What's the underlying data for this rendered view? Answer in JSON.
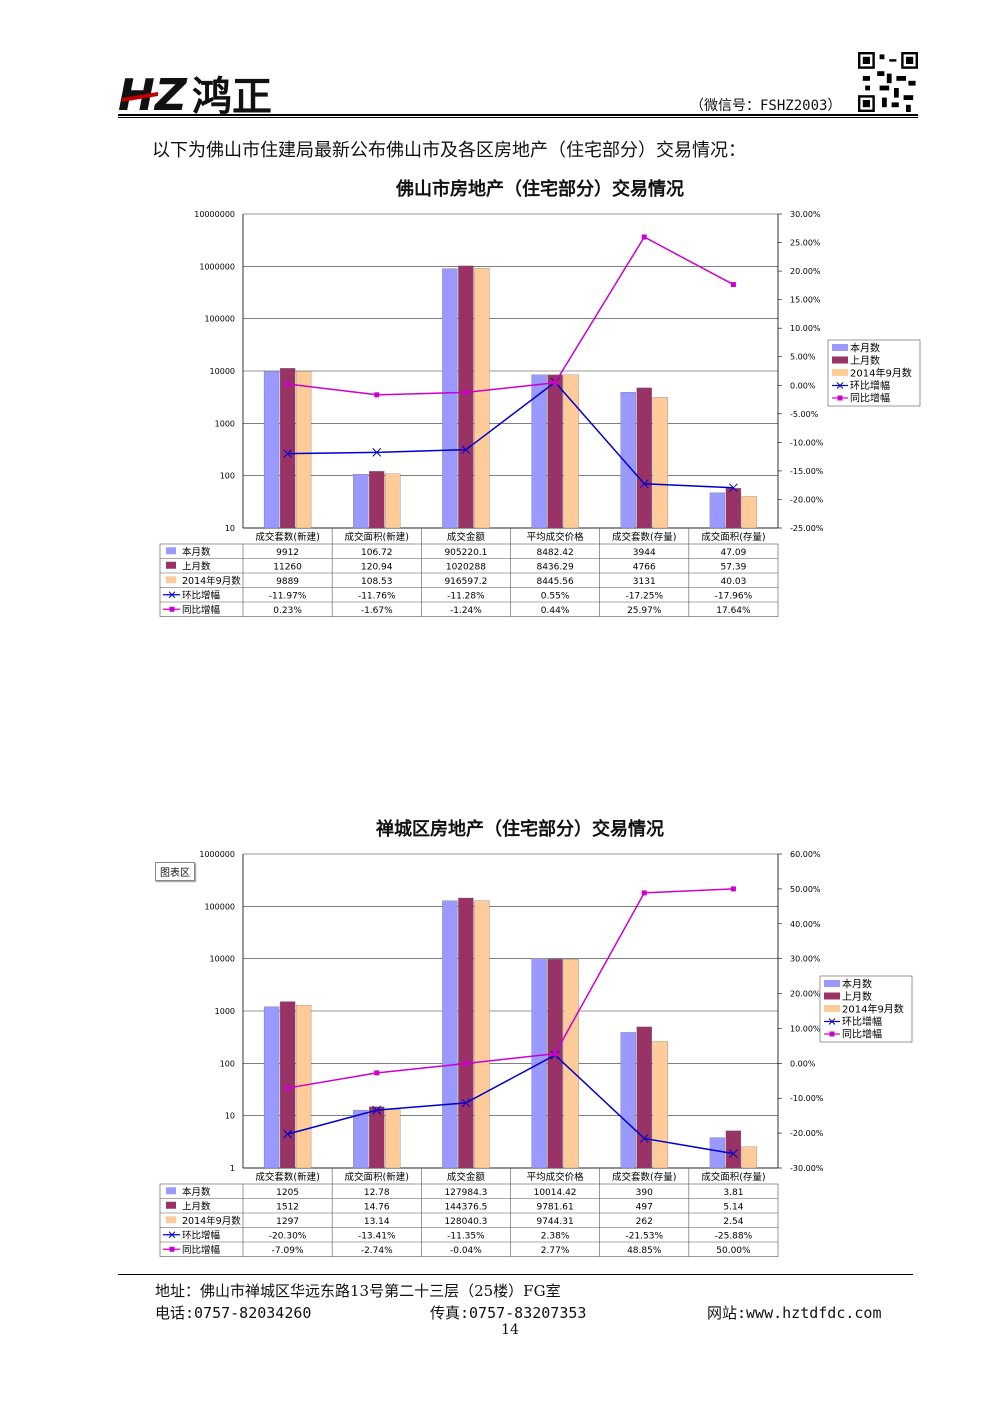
{
  "header": {
    "logo_text": "HZ鸿正",
    "wechat": "（微信号：FSHZ2003）"
  },
  "intro": "以下为佛山市住建局最新公布佛山市及各区房地产（住宅部分）交易情况：",
  "colors": {
    "this_month": "#9999ff",
    "last_month": "#993366",
    "year_ago": "#ffcc99",
    "mom": "#0000cc",
    "yoy": "#cc00cc"
  },
  "chart_data": [
    {
      "type": "bar",
      "title": "佛山市房地产（住宅部分）交易情况",
      "categories": [
        "成交套数(新建)",
        "成交面积(新建)",
        "成交金额",
        "平均成交价格",
        "成交套数(存量)",
        "成交面积(存量)"
      ],
      "left_axis": {
        "scale": "log",
        "ticks": [
          "10",
          "100",
          "1000",
          "10000",
          "100000",
          "1000000",
          "10000000"
        ]
      },
      "right_axis": {
        "min": -25,
        "max": 30,
        "ticks": [
          "30.00%",
          "25.00%",
          "20.00%",
          "15.00%",
          "10.00%",
          "5.00%",
          "0.00%",
          "-5.00%",
          "-10.00%",
          "-15.00%",
          "-20.00%",
          "-25.00%"
        ]
      },
      "series": [
        {
          "name": "本月数",
          "kind": "bar",
          "values": [
            9912,
            106.72,
            905220.1,
            8482.42,
            3944,
            47.09
          ],
          "labels": [
            "9912",
            "106.72",
            "905220.1",
            "8482.42",
            "3944",
            "47.09"
          ]
        },
        {
          "name": "上月数",
          "kind": "bar",
          "values": [
            11260,
            120.94,
            1020288,
            8436.29,
            4766,
            57.39
          ],
          "labels": [
            "11260",
            "120.94",
            "1020288",
            "8436.29",
            "4766",
            "57.39"
          ]
        },
        {
          "name": "2014年9月数",
          "kind": "bar",
          "values": [
            9889,
            108.53,
            916597.2,
            8445.56,
            3131,
            40.03
          ],
          "labels": [
            "9889",
            "108.53",
            "916597.2",
            "8445.56",
            "3131",
            "40.03"
          ]
        },
        {
          "name": "环比增幅",
          "kind": "line",
          "values": [
            -11.97,
            -11.76,
            -11.28,
            0.55,
            -17.25,
            -17.96
          ],
          "labels": [
            "-11.97%",
            "-11.76%",
            "-11.28%",
            "0.55%",
            "-17.25%",
            "-17.96%"
          ]
        },
        {
          "name": "同比增幅",
          "kind": "line",
          "values": [
            0.23,
            -1.67,
            -1.24,
            0.44,
            25.97,
            17.64
          ],
          "labels": [
            "0.23%",
            "-1.67%",
            "-1.24%",
            "0.44%",
            "25.97%",
            "17.64%"
          ]
        }
      ],
      "table_row_labels": [
        "本月数",
        "上月数",
        "2014年9月数",
        "环比增幅",
        "同比增幅"
      ],
      "legend": [
        "本月数",
        "上月数",
        "2014年9月数",
        "环比增幅",
        "同比增幅"
      ]
    },
    {
      "type": "bar",
      "title": "禅城区房地产（住宅部分）交易情况",
      "area_tag": "图表区",
      "categories": [
        "成交套数(新建)",
        "成交面积(新建)",
        "成交金额",
        "平均成交价格",
        "成交套数(存量)",
        "成交面积(存量)"
      ],
      "left_axis": {
        "scale": "log",
        "ticks": [
          "1",
          "10",
          "100",
          "1000",
          "10000",
          "100000",
          "1000000"
        ]
      },
      "right_axis": {
        "min": -30,
        "max": 60,
        "ticks": [
          "60.00%",
          "50.00%",
          "40.00%",
          "30.00%",
          "20.00%",
          "10.00%",
          "0.00%",
          "-10.00%",
          "-20.00%",
          "-30.00%"
        ]
      },
      "series": [
        {
          "name": "本月数",
          "kind": "bar",
          "values": [
            1205,
            12.78,
            127984.3,
            10014.42,
            390,
            3.81
          ],
          "labels": [
            "1205",
            "12.78",
            "127984.3",
            "10014.42",
            "390",
            "3.81"
          ]
        },
        {
          "name": "上月数",
          "kind": "bar",
          "values": [
            1512,
            14.76,
            144376.5,
            9781.61,
            497,
            5.14
          ],
          "labels": [
            "1512",
            "14.76",
            "144376.5",
            "9781.61",
            "497",
            "5.14"
          ]
        },
        {
          "name": "2014年9月数",
          "kind": "bar",
          "values": [
            1297,
            13.14,
            128040.3,
            9744.31,
            262,
            2.54
          ],
          "labels": [
            "1297",
            "13.14",
            "128040.3",
            "9744.31",
            "262",
            "2.54"
          ]
        },
        {
          "name": "环比增幅",
          "kind": "line",
          "values": [
            -20.3,
            -13.41,
            -11.35,
            2.38,
            -21.53,
            -25.88
          ],
          "labels": [
            "-20.30%",
            "-13.41%",
            "-11.35%",
            "2.38%",
            "-21.53%",
            "-25.88%"
          ]
        },
        {
          "name": "同比增幅",
          "kind": "line",
          "values": [
            -7.09,
            -2.74,
            -0.04,
            2.77,
            48.85,
            50.0
          ],
          "labels": [
            "-7.09%",
            "-2.74%",
            "-0.04%",
            "2.77%",
            "48.85%",
            "50.00%"
          ]
        }
      ],
      "table_row_labels": [
        "本月数",
        "上月数",
        "2014年9月数",
        "环比增幅",
        "同比增幅"
      ],
      "legend": [
        "本月数",
        "上月数",
        "2014年9月数",
        "环比增幅",
        "同比增幅"
      ]
    }
  ],
  "footer": {
    "address": "地址：佛山市禅城区华远东路13号第二十三层（25楼）FG室",
    "tel": "电话:0757-82034260",
    "fax": "传真:0757-83207353",
    "web": "网站:www.hztdfdc.com",
    "page": "14"
  }
}
